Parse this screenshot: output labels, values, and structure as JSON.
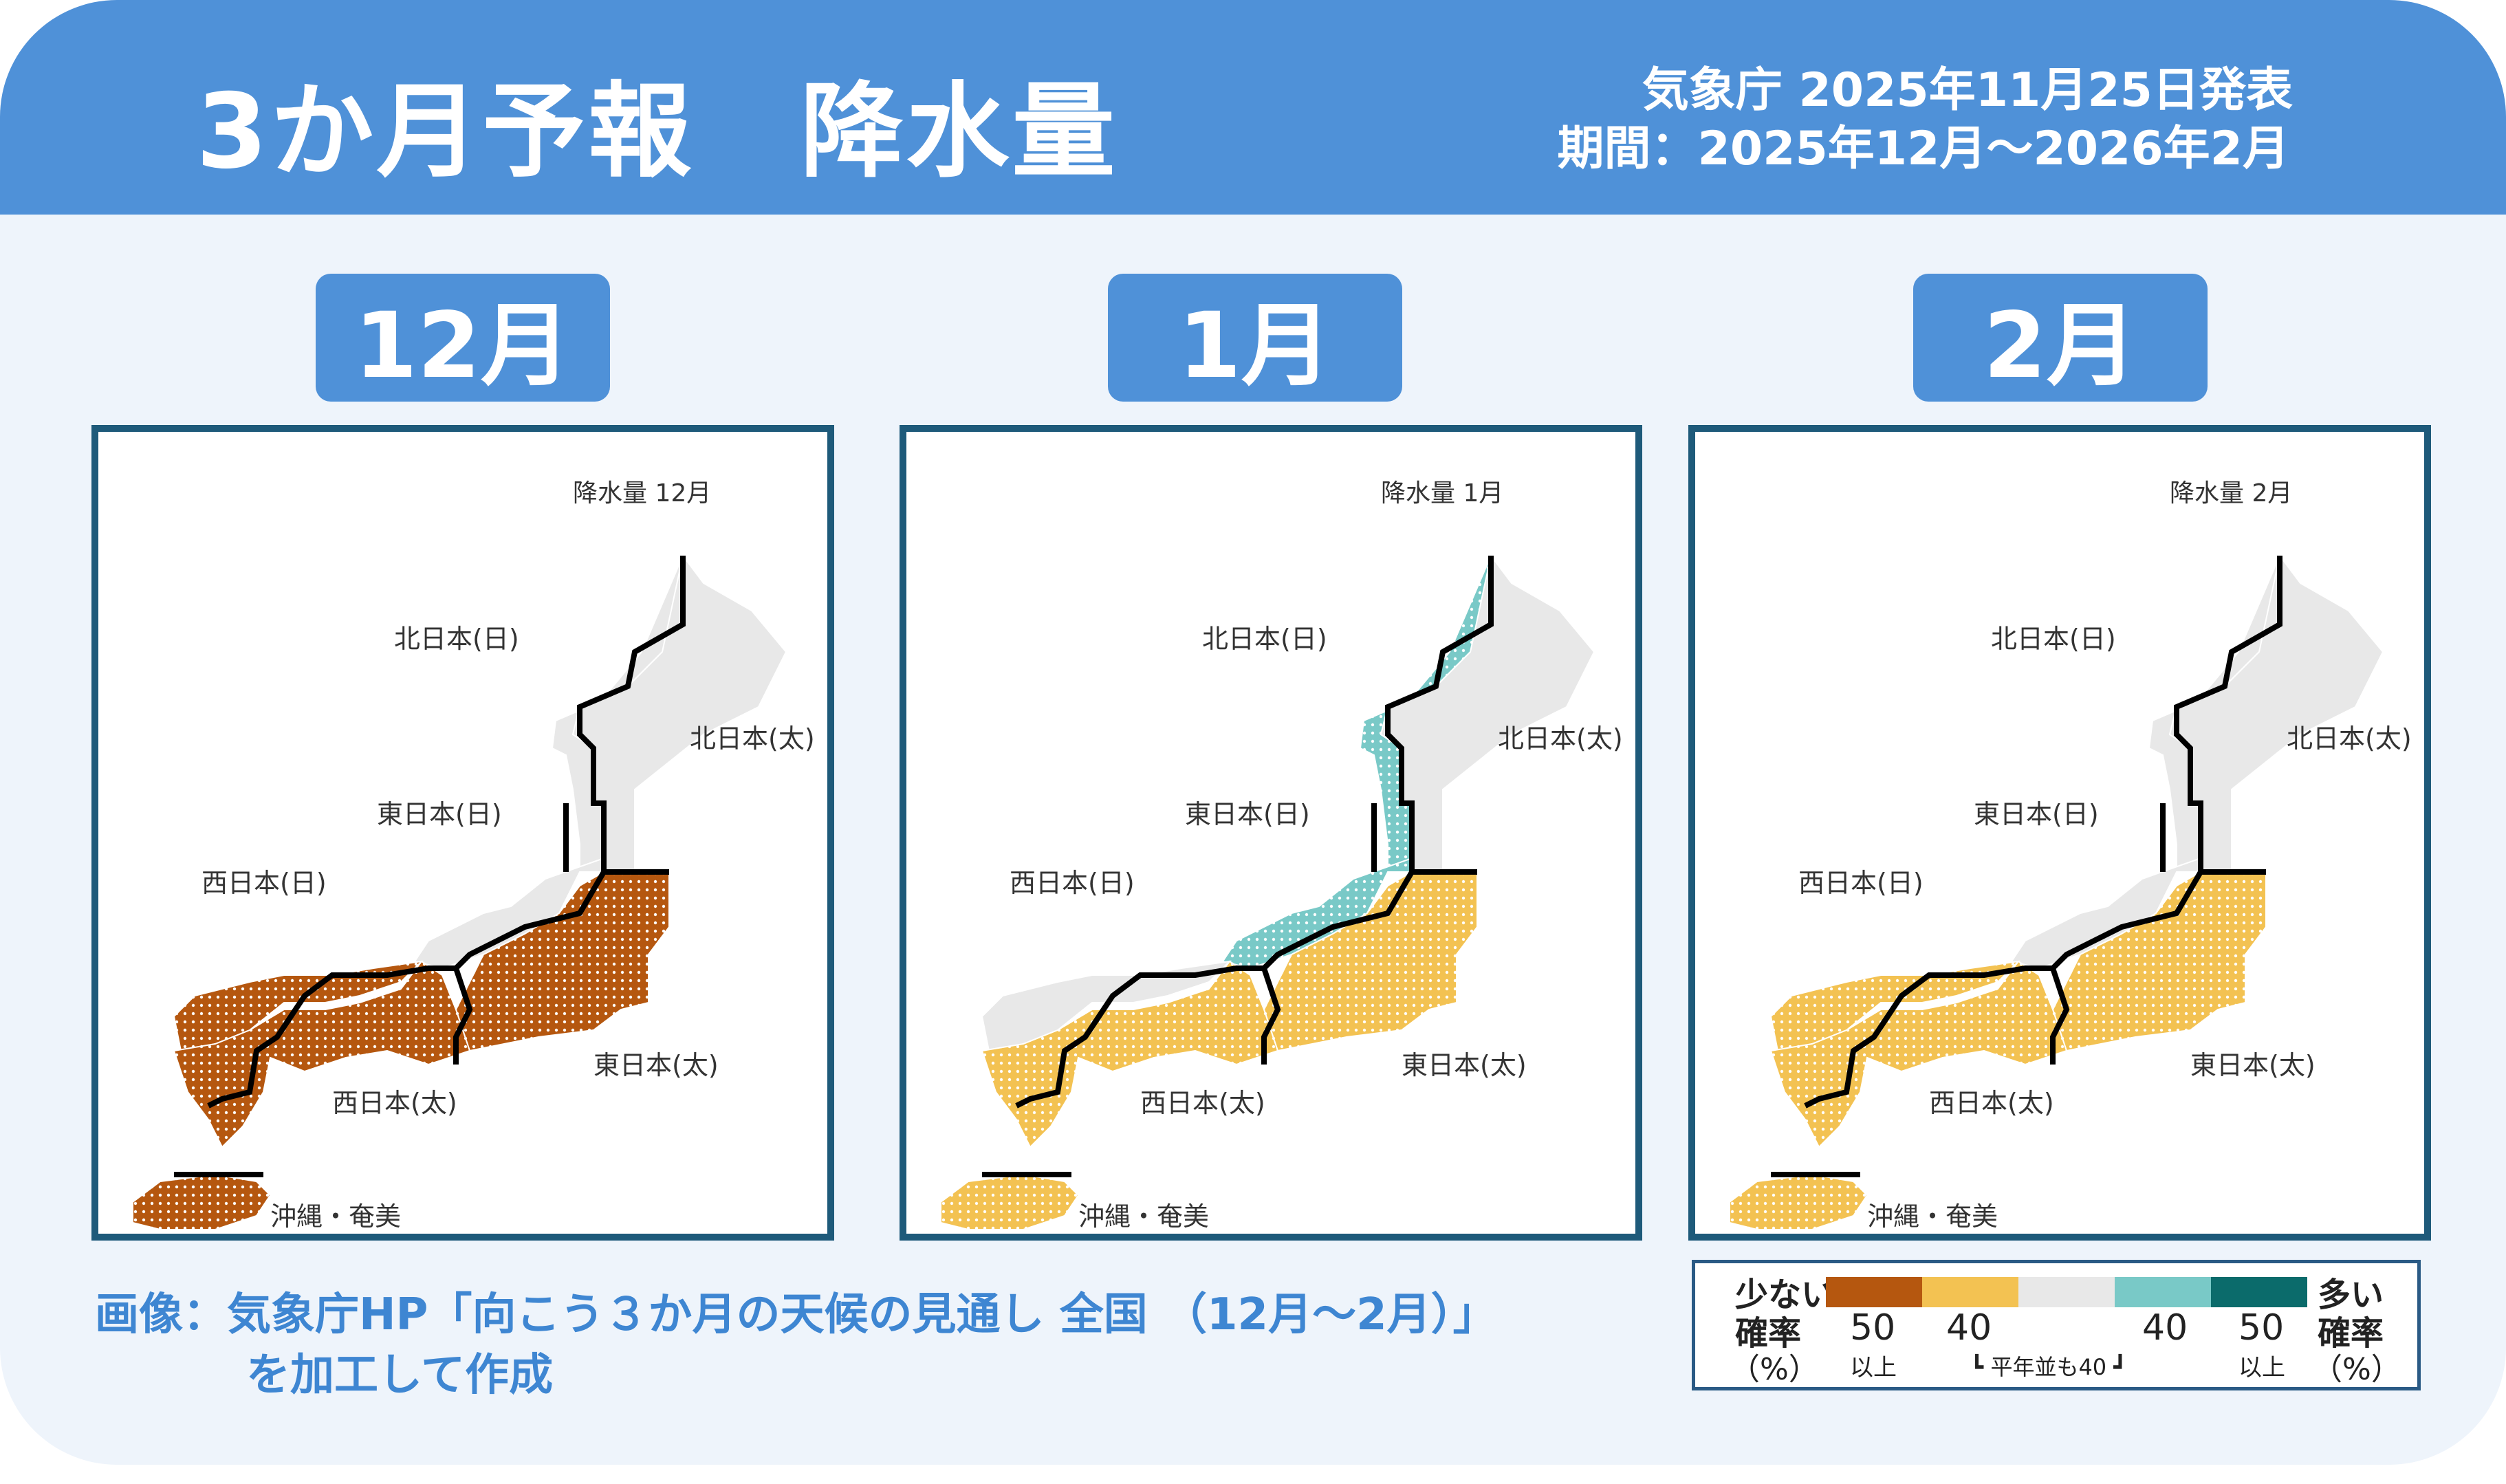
{
  "header": {
    "title": "3か月予報　降水量",
    "issuer": "気象庁 2025年11月25日発表",
    "period": "期間：2025年12月～2026年2月"
  },
  "colors": {
    "header_bg": "#4f91d8",
    "card_bg": "#eef4fb",
    "less_50": "#b5570f",
    "less_40": "#f3c252",
    "normal_40": "#e8e8e8",
    "more_40": "#79c9c7",
    "more_50": "#0b6b6b",
    "frame": "#1e5a7a"
  },
  "maps": [
    {
      "tab": "12月",
      "heading": "降水量 12月",
      "regions": {
        "north_sea": "normal",
        "north_pacific": "normal",
        "east_sea": "normal",
        "east_pacific": "less_50",
        "west_sea": "less_50",
        "west_pacific": "less_50",
        "okinawa": "less_50"
      }
    },
    {
      "tab": "1月",
      "heading": "降水量 1月",
      "regions": {
        "north_sea": "more_40",
        "north_pacific": "normal",
        "east_sea": "more_40",
        "east_pacific": "less_40",
        "west_sea": "normal",
        "west_pacific": "less_40",
        "okinawa": "less_40"
      }
    },
    {
      "tab": "2月",
      "heading": "降水量 2月",
      "regions": {
        "north_sea": "normal",
        "north_pacific": "normal",
        "east_sea": "normal",
        "east_pacific": "less_40",
        "west_sea": "less_40",
        "west_pacific": "less_40",
        "okinawa": "less_40"
      }
    }
  ],
  "region_labels": {
    "north_sea": "北日本(日)",
    "north_pacific": "北日本(太)",
    "east_sea": "東日本(日)",
    "east_pacific": "東日本(太)",
    "west_sea": "西日本(日)",
    "west_pacific": "西日本(太)",
    "okinawa": "沖縄・奄美"
  },
  "credit": {
    "line1": "画像：気象庁HP「向こう３か月の天候の見通し 全国 （12月～2月）」",
    "line2": "を加工して作成"
  },
  "legend": {
    "less_label": "少ない",
    "more_label": "多い",
    "prob_label": "確率",
    "pct_label": "（%）",
    "v50": "50",
    "v40": "40",
    "above": "以上",
    "normal_note": "平年並も40"
  }
}
